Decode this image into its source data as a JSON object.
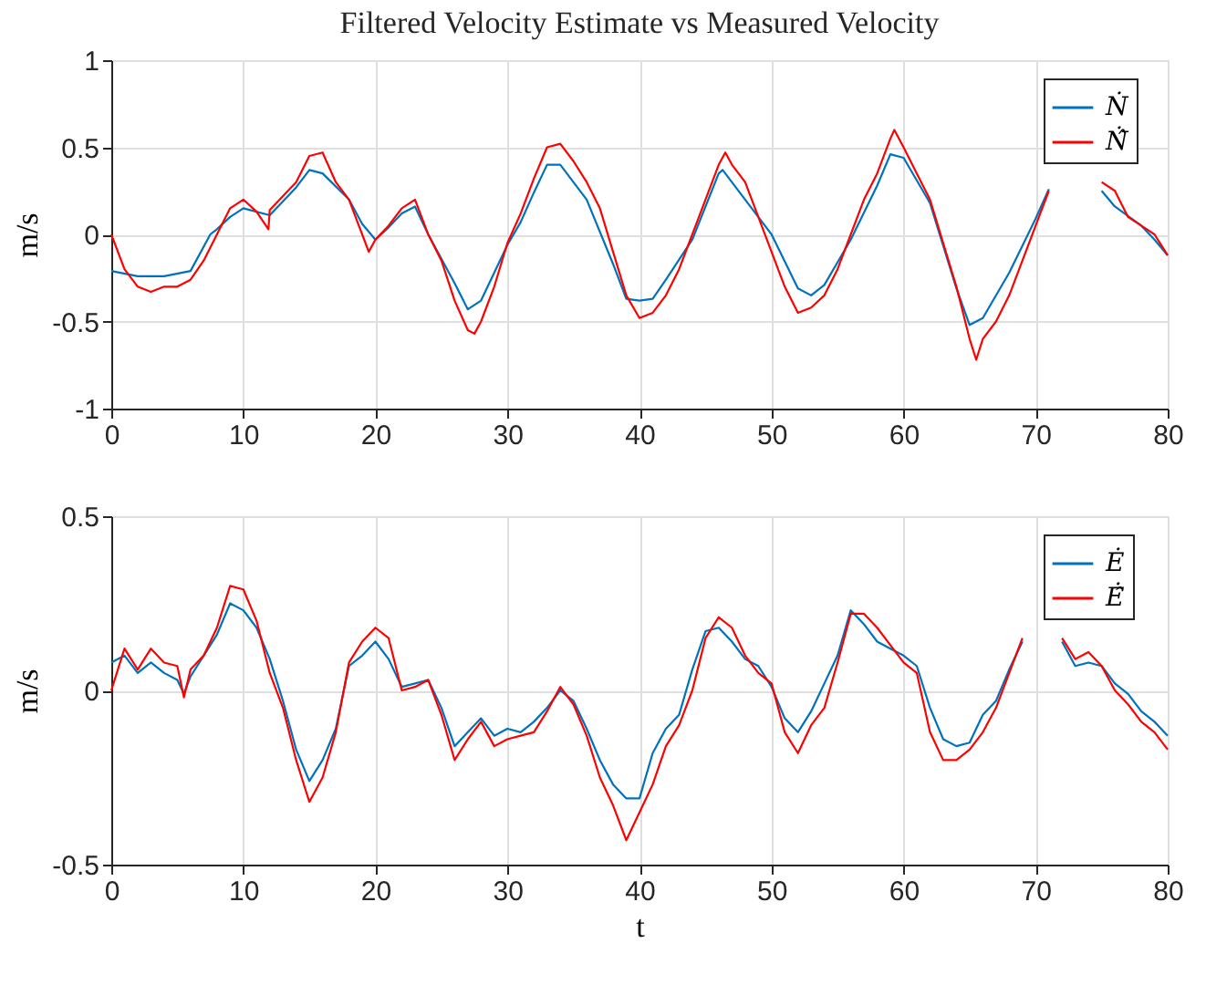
{
  "chart_data": [
    {
      "type": "line",
      "title": "Filtered Velocity Estimate vs Measured Velocity",
      "ylabel": "m/s",
      "xlim": [
        0,
        80
      ],
      "xticks": [
        0,
        10,
        20,
        30,
        40,
        50,
        60,
        70,
        80
      ],
      "ylim": [
        -1,
        1
      ],
      "yticks": [
        -1,
        -0.5,
        0,
        0.5,
        1
      ],
      "grid": true,
      "legend": "top right",
      "series": [
        {
          "name": "Ṅ",
          "color": "#0072bd",
          "x": [
            0,
            2,
            4,
            6,
            7.5,
            8,
            9,
            10,
            12,
            14,
            15,
            16,
            18,
            19,
            20,
            21,
            22,
            23,
            24,
            26,
            27,
            28,
            30,
            31,
            32,
            33,
            34,
            36,
            38,
            39,
            40,
            41,
            42,
            44,
            46,
            46.3,
            48,
            50,
            52,
            53,
            54,
            56,
            58,
            59,
            60,
            62,
            64,
            65,
            66,
            68,
            70,
            71,
            72,
            73,
            74,
            75,
            76,
            78,
            79,
            80
          ],
          "values": [
            -0.21,
            -0.24,
            -0.24,
            -0.21,
            0.0,
            0.03,
            0.1,
            0.15,
            0.11,
            0.27,
            0.37,
            0.35,
            0.2,
            0.06,
            -0.03,
            0.04,
            0.12,
            0.16,
            0.0,
            -0.28,
            -0.43,
            -0.38,
            -0.06,
            0.07,
            0.24,
            0.4,
            0.4,
            0.2,
            -0.17,
            -0.37,
            -0.38,
            -0.37,
            -0.26,
            -0.03,
            0.35,
            0.37,
            0.2,
            0.0,
            -0.31,
            -0.35,
            -0.29,
            -0.03,
            0.28,
            0.46,
            0.44,
            0.18,
            -0.31,
            -0.52,
            -0.48,
            -0.22,
            0.09,
            0.26,
            null,
            null,
            null,
            0.25,
            0.16,
            0.05,
            -0.03,
            -0.12
          ]
        },
        {
          "name": "Ṅ̂",
          "color": "#ff0000",
          "x": [
            0,
            1,
            2,
            3,
            4,
            5,
            6,
            7,
            8,
            9,
            10,
            11,
            11.9,
            12,
            13,
            14,
            15,
            16,
            17,
            18,
            19,
            19.5,
            20,
            21,
            22,
            23,
            24,
            25,
            26,
            27,
            27.5,
            28,
            29,
            30,
            31,
            32,
            33,
            34,
            35,
            36,
            37,
            38,
            39,
            40,
            41,
            42,
            43,
            44,
            45,
            46,
            46.5,
            47,
            48,
            49,
            50,
            51,
            52,
            53,
            54,
            55,
            56,
            57,
            58,
            59,
            59.3,
            60,
            61,
            62,
            63,
            64,
            65,
            65.5,
            66,
            67,
            68,
            69,
            70,
            71,
            72,
            73,
            74,
            75,
            76,
            77,
            78,
            79,
            80
          ],
          "values": [
            0.0,
            -0.2,
            -0.3,
            -0.33,
            -0.3,
            -0.3,
            -0.26,
            -0.15,
            0.0,
            0.15,
            0.2,
            0.13,
            0.03,
            0.14,
            0.22,
            0.3,
            0.45,
            0.47,
            0.3,
            0.2,
            0.0,
            -0.1,
            -0.03,
            0.05,
            0.15,
            0.2,
            0.0,
            -0.15,
            -0.38,
            -0.55,
            -0.57,
            -0.5,
            -0.3,
            -0.05,
            0.12,
            0.32,
            0.5,
            0.52,
            0.42,
            0.3,
            0.15,
            -0.1,
            -0.35,
            -0.48,
            -0.45,
            -0.35,
            -0.2,
            0.0,
            0.2,
            0.4,
            0.47,
            0.4,
            0.3,
            0.1,
            -0.1,
            -0.3,
            -0.45,
            -0.42,
            -0.35,
            -0.2,
            0.0,
            0.2,
            0.35,
            0.55,
            0.6,
            0.5,
            0.35,
            0.2,
            -0.05,
            -0.3,
            -0.6,
            -0.72,
            -0.6,
            -0.5,
            -0.35,
            -0.15,
            0.05,
            0.25,
            null,
            null,
            null,
            0.3,
            0.25,
            0.1,
            0.05,
            0.0,
            -0.12
          ]
        }
      ]
    },
    {
      "type": "line",
      "xlabel": "t",
      "ylabel": "m/s",
      "xlim": [
        0,
        80
      ],
      "xticks": [
        0,
        10,
        20,
        30,
        40,
        50,
        60,
        70,
        80
      ],
      "ylim": [
        -0.5,
        0.5
      ],
      "yticks": [
        -0.5,
        0,
        0.5
      ],
      "grid": true,
      "legend": "top right",
      "series": [
        {
          "name": "Ė",
          "color": "#0072bd",
          "x": [
            0,
            1,
            2,
            3,
            4,
            5,
            5.5,
            6,
            7,
            8,
            9,
            10,
            11,
            12,
            13,
            14,
            15,
            16,
            17,
            18,
            19,
            20,
            21,
            22,
            23,
            24,
            25,
            26,
            27,
            28,
            29,
            30,
            31,
            32,
            33,
            34,
            35,
            36,
            37,
            38,
            39,
            40,
            41,
            42,
            43,
            44,
            45,
            46,
            47,
            48,
            49,
            50,
            51,
            52,
            53,
            54,
            55,
            56,
            57,
            58,
            59,
            60,
            61,
            62,
            63,
            64,
            65,
            66,
            67,
            68,
            69,
            70,
            71,
            72,
            73,
            74,
            75,
            76,
            77,
            78,
            79,
            80
          ],
          "values": [
            0.08,
            0.1,
            0.05,
            0.08,
            0.05,
            0.03,
            -0.01,
            0.04,
            0.1,
            0.16,
            0.25,
            0.23,
            0.18,
            0.09,
            -0.03,
            -0.17,
            -0.26,
            -0.2,
            -0.11,
            0.07,
            0.1,
            0.14,
            0.09,
            0.01,
            0.02,
            0.03,
            -0.05,
            -0.16,
            -0.12,
            -0.08,
            -0.13,
            -0.11,
            -0.12,
            -0.09,
            -0.05,
            0.0,
            -0.03,
            -0.11,
            -0.2,
            -0.27,
            -0.31,
            -0.31,
            -0.18,
            -0.11,
            -0.07,
            0.06,
            0.17,
            0.18,
            0.14,
            0.09,
            0.07,
            0.01,
            -0.08,
            -0.12,
            -0.06,
            0.02,
            0.1,
            0.23,
            0.19,
            0.14,
            0.12,
            0.1,
            0.07,
            -0.05,
            -0.14,
            -0.16,
            -0.15,
            -0.07,
            -0.03,
            0.06,
            0.14,
            null,
            null,
            0.14,
            0.07,
            0.08,
            0.07,
            0.02,
            -0.01,
            -0.06,
            -0.09,
            -0.13
          ]
        },
        {
          "name": "Ė̂",
          "color": "#ff0000",
          "x": [
            0,
            1,
            2,
            3,
            4,
            5,
            5.5,
            6,
            7,
            8,
            9,
            10,
            11,
            12,
            13,
            14,
            15,
            16,
            17,
            18,
            19,
            20,
            21,
            22,
            23,
            24,
            25,
            26,
            27,
            28,
            29,
            30,
            31,
            32,
            33,
            34,
            35,
            36,
            37,
            38,
            39,
            40,
            41,
            42,
            43,
            44,
            45,
            46,
            47,
            48,
            49,
            50,
            51,
            52,
            53,
            54,
            55,
            56,
            57,
            58,
            59,
            60,
            61,
            62,
            63,
            64,
            65,
            66,
            67,
            68,
            69,
            70,
            71,
            72,
            73,
            74,
            75,
            76,
            77,
            78,
            79,
            80
          ],
          "values": [
            0.0,
            0.12,
            0.06,
            0.12,
            0.08,
            0.07,
            -0.02,
            0.06,
            0.1,
            0.18,
            0.3,
            0.29,
            0.2,
            0.05,
            -0.05,
            -0.2,
            -0.32,
            -0.25,
            -0.12,
            0.08,
            0.14,
            0.18,
            0.15,
            0.0,
            0.01,
            0.03,
            -0.07,
            -0.2,
            -0.14,
            -0.09,
            -0.16,
            -0.14,
            -0.13,
            -0.12,
            -0.06,
            0.01,
            -0.04,
            -0.13,
            -0.25,
            -0.33,
            -0.43,
            -0.35,
            -0.27,
            -0.16,
            -0.1,
            0.0,
            0.15,
            0.21,
            0.18,
            0.1,
            0.05,
            0.02,
            -0.12,
            -0.18,
            -0.1,
            -0.05,
            0.08,
            0.22,
            0.22,
            0.18,
            0.13,
            0.08,
            0.05,
            -0.12,
            -0.2,
            -0.2,
            -0.17,
            -0.12,
            -0.05,
            0.05,
            0.15,
            null,
            null,
            0.15,
            0.09,
            0.11,
            0.07,
            0.0,
            -0.04,
            -0.09,
            -0.12,
            -0.17
          ]
        }
      ]
    }
  ]
}
